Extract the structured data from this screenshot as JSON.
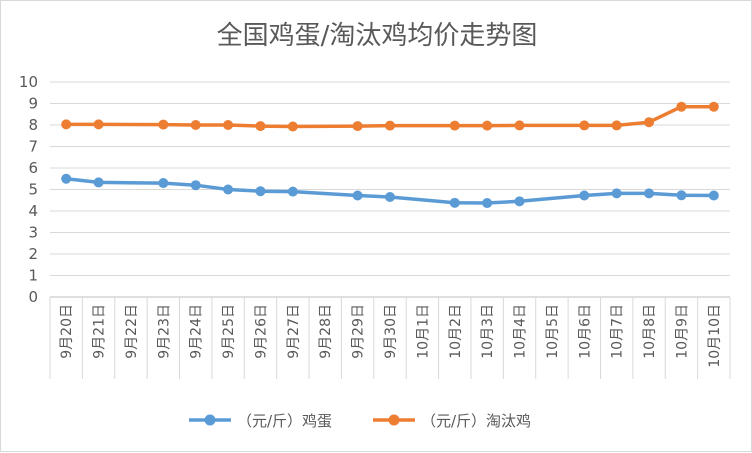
{
  "chart_data": {
    "type": "line",
    "title": "全国鸡蛋/淘汰鸡均价走势图",
    "xlabel": "",
    "ylabel": "",
    "ylim": [
      0,
      10
    ],
    "y_ticks": [
      0,
      1,
      2,
      3,
      4,
      5,
      6,
      7,
      8,
      9,
      10
    ],
    "grid": true,
    "legend_position": "bottom",
    "categories": [
      "9月20日",
      "9月21日",
      "9月22日",
      "9月23日",
      "9月24日",
      "9月25日",
      "9月26日",
      "9月27日",
      "9月28日",
      "9月29日",
      "9月30日",
      "10月1日",
      "10月2日",
      "10月3日",
      "10月4日",
      "10月5日",
      "10月6日",
      "10月7日",
      "10月8日",
      "10月9日",
      "10月10日"
    ],
    "series": [
      {
        "name": "（元/斤）鸡蛋",
        "color": "#5b9bd5",
        "values": [
          5.5,
          5.33,
          null,
          5.3,
          5.2,
          5.0,
          4.92,
          4.9,
          null,
          4.72,
          4.65,
          null,
          4.38,
          4.37,
          4.45,
          null,
          4.72,
          4.82,
          4.82,
          4.73,
          4.72
        ]
      },
      {
        "name": "（元/斤）淘汰鸡",
        "color": "#ed7d31",
        "values": [
          8.03,
          8.03,
          null,
          8.02,
          8.0,
          8.0,
          7.95,
          7.93,
          null,
          7.95,
          7.97,
          null,
          7.97,
          7.97,
          7.98,
          null,
          7.98,
          7.98,
          8.13,
          8.85,
          8.85
        ]
      }
    ]
  }
}
